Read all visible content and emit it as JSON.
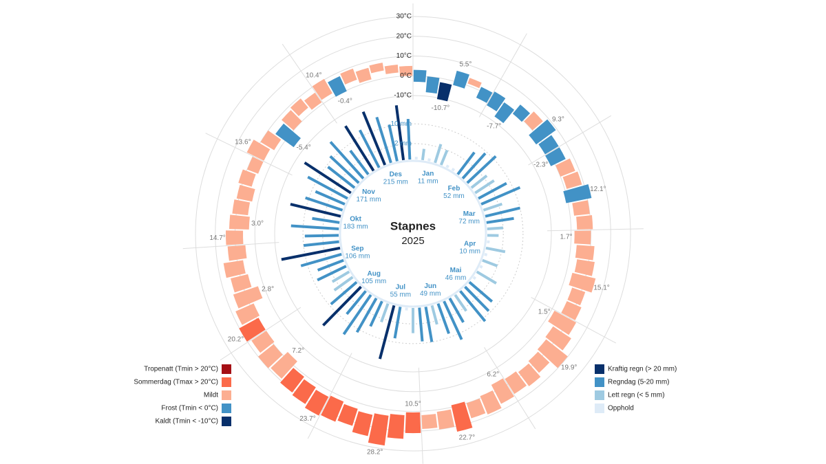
{
  "chart_data": {
    "type": "radial-climate",
    "title": "Stapnes",
    "subtitle": "2025",
    "temp_lim": [
      -10,
      30
    ],
    "temp_ticks": [
      {
        "value": -10,
        "label": "-10°C"
      },
      {
        "value": 0,
        "label": "0°C"
      },
      {
        "value": 10,
        "label": "10°C"
      },
      {
        "value": 20,
        "label": "20°C"
      },
      {
        "value": 30,
        "label": "30°C"
      }
    ],
    "precip_scale": "sqrt",
    "precip_ticks": [
      {
        "value": 2,
        "label": "2 mm"
      },
      {
        "value": 10,
        "label": "10 mm"
      }
    ],
    "tmin": [
      -3,
      -8,
      -10.7,
      -2,
      1,
      -4,
      -5,
      -7.7,
      -1,
      0,
      -3,
      -2,
      -2.3,
      0,
      1,
      -1,
      2,
      3,
      1.7,
      3,
      4,
      3,
      5,
      5,
      1.5,
      5,
      6,
      7,
      8,
      7,
      6.2,
      9,
      10,
      9,
      11,
      12,
      10.5,
      12,
      13,
      14,
      13,
      12,
      13,
      12,
      11,
      7.2,
      10,
      9,
      9,
      8,
      2.8,
      6,
      7,
      5,
      6,
      3,
      4,
      3,
      5,
      4,
      4,
      2,
      -5.4,
      0,
      3,
      1,
      2,
      -0.4,
      3,
      1,
      4,
      2,
      0
    ],
    "tmax": [
      3,
      0,
      -2,
      5.5,
      4,
      2,
      3,
      1,
      5,
      7,
      9.3,
      6,
      6,
      8,
      9,
      12.1,
      10,
      11,
      10,
      12,
      13,
      15.1,
      12,
      13,
      14,
      16,
      19.9,
      15,
      17,
      16,
      17,
      19,
      18,
      22.7,
      20,
      19,
      21,
      24,
      28.2,
      25,
      22,
      23,
      23.7,
      22,
      21,
      19,
      20,
      18,
      20.2,
      18,
      16,
      15,
      17,
      14,
      14.7,
      13,
      12,
      11,
      12,
      10,
      13.6,
      10,
      6,
      8,
      9,
      7,
      10.4,
      8,
      9,
      7,
      8,
      6,
      5
    ],
    "precipitation": [
      0,
      1,
      0,
      3,
      2,
      0,
      0,
      6,
      9,
      12,
      3,
      4,
      8,
      14,
      3,
      10,
      6,
      2,
      1,
      0,
      3,
      0,
      2,
      0,
      4,
      0,
      7,
      9,
      12,
      3,
      6,
      14,
      8,
      3,
      10,
      9,
      5,
      0,
      8,
      24,
      3,
      6,
      12,
      18,
      7,
      23,
      9,
      4,
      3,
      8,
      6,
      14,
      28,
      10,
      9,
      18,
      6,
      21,
      12,
      8,
      16,
      24,
      9,
      12,
      19,
      7,
      22,
      14,
      26,
      18,
      11,
      24,
      13
    ],
    "months": [
      {
        "name": "Jan",
        "precip_total": 11,
        "precip_label": "11 mm",
        "max": 5.5,
        "max_label": "5.5°",
        "min": -10.7,
        "min_label": "-10.7°"
      },
      {
        "name": "Feb",
        "precip_total": 52,
        "precip_label": "52 mm",
        "max": 9.3,
        "max_label": "9.3°",
        "min": -7.7,
        "min_label": "-7.7°"
      },
      {
        "name": "Mar",
        "precip_total": 72,
        "precip_label": "72 mm",
        "max": 12.1,
        "max_label": "12.1°",
        "min": -2.3,
        "min_label": "-2.3°"
      },
      {
        "name": "Apr",
        "precip_total": 10,
        "precip_label": "10 mm",
        "max": 15.1,
        "max_label": "15.1°",
        "min": 1.7,
        "min_label": "1.7°"
      },
      {
        "name": "Mai",
        "precip_total": 46,
        "precip_label": "46 mm",
        "max": 19.9,
        "max_label": "19.9°",
        "min": 1.5,
        "min_label": "1.5°"
      },
      {
        "name": "Jun",
        "precip_total": 49,
        "precip_label": "49 mm",
        "max": 22.7,
        "max_label": "22.7°",
        "min": 6.2,
        "min_label": "6.2°"
      },
      {
        "name": "Jul",
        "precip_total": 55,
        "precip_label": "55 mm",
        "max": 28.2,
        "max_label": "28.2°",
        "min": 10.5,
        "min_label": "10.5°"
      },
      {
        "name": "Aug",
        "precip_total": 105,
        "precip_label": "105 mm",
        "max": 23.7,
        "max_label": "23.7°",
        "min": 7.2,
        "min_label": "7.2°"
      },
      {
        "name": "Sep",
        "precip_total": 106,
        "precip_label": "106 mm",
        "max": 20.2,
        "max_label": "20.2°",
        "min": 2.8,
        "min_label": "2.8°"
      },
      {
        "name": "Okt",
        "precip_total": 183,
        "precip_label": "183 mm",
        "max": 14.7,
        "max_label": "14.7°",
        "min": 3,
        "min_label": "3.0°"
      },
      {
        "name": "Nov",
        "precip_total": 171,
        "precip_label": "171 mm",
        "max": 13.6,
        "max_label": "13.6°",
        "min": -5.4,
        "min_label": "-5.4°"
      },
      {
        "name": "Des",
        "precip_total": 215,
        "precip_label": "215 mm",
        "max": 10.4,
        "max_label": "10.4°",
        "min": -0.4,
        "min_label": "-0.4°"
      }
    ],
    "temp_legend": [
      {
        "name": "Tropenatt (Tmin > 20°C)",
        "color": "#a50f15",
        "tmin_above": 20
      },
      {
        "name": "Sommerdag (Tmax > 20°C)",
        "color": "#fb6a4a",
        "tmax_above": 20
      },
      {
        "name": "Mildt",
        "color": "#fcae91"
      },
      {
        "name": "Frost (Tmin < 0°C)",
        "color": "#4292c6",
        "tmin_below": 0
      },
      {
        "name": "Kaldt (Tmin < -10°C)",
        "color": "#08306b",
        "tmin_below": -10
      }
    ],
    "precip_legend": [
      {
        "name": "Kraftig regn (> 20 mm)",
        "color": "#08306b",
        "above": 20
      },
      {
        "name": "Regndag (5-20 mm)",
        "color": "#4292c6",
        "above": 5
      },
      {
        "name": "Lett regn (< 5 mm)",
        "color": "#9ecae1",
        "above": 0
      },
      {
        "name": "Opphold",
        "color": "#deebf7"
      }
    ]
  }
}
